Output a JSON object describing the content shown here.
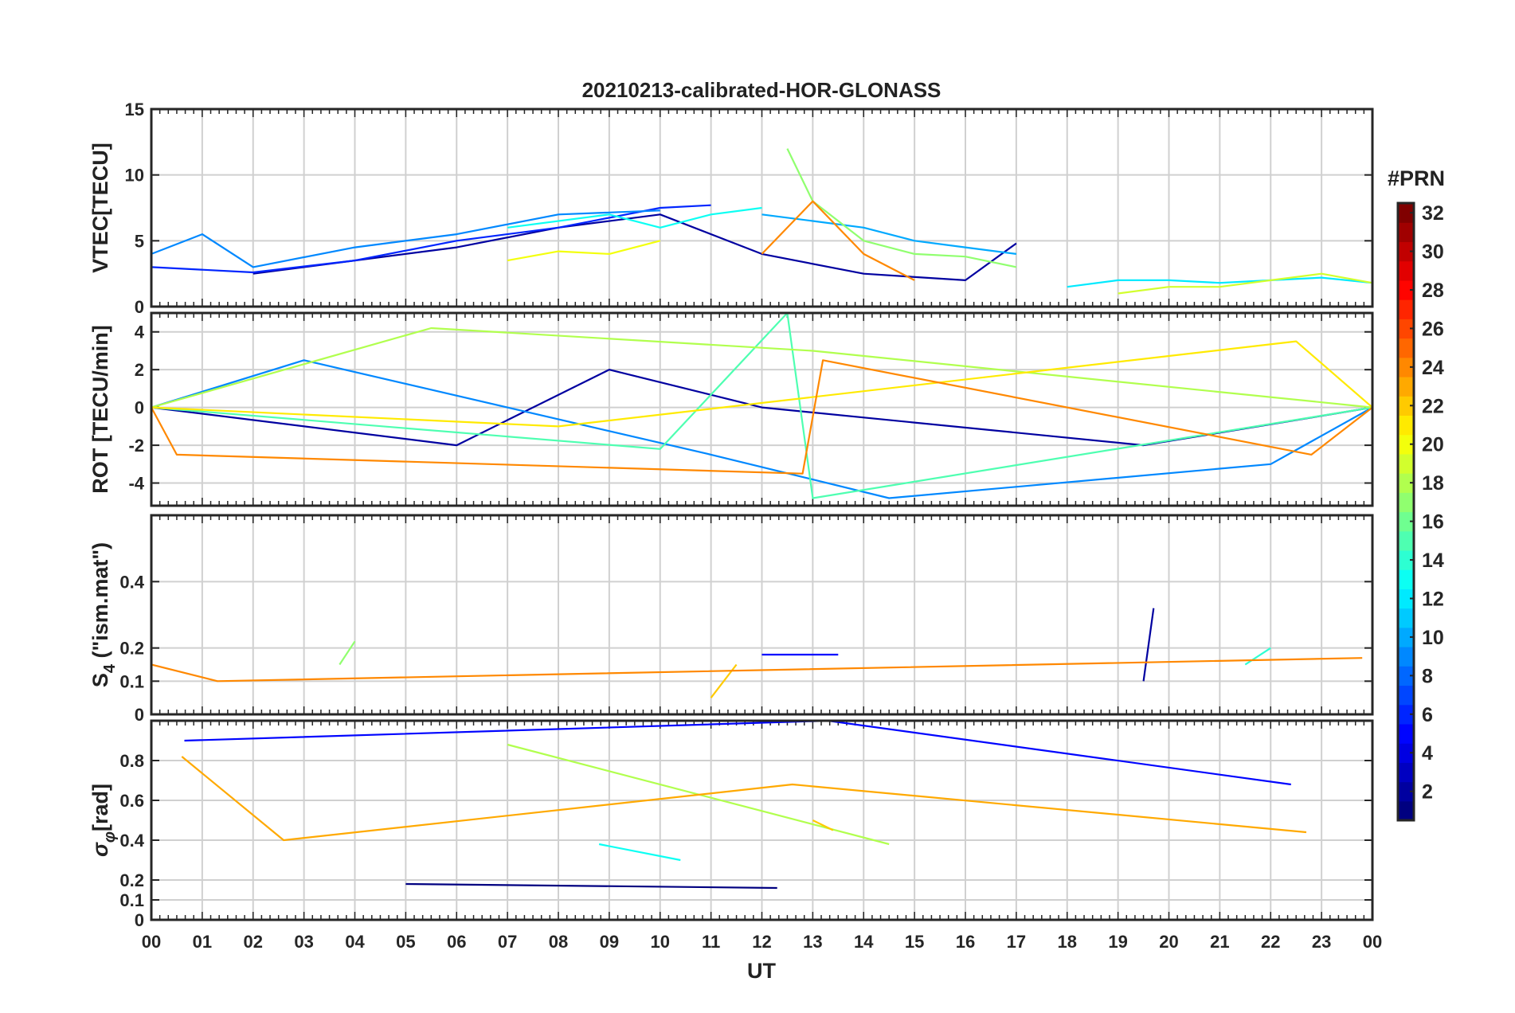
{
  "chart_data": {
    "type": "line",
    "title": "20210213-calibrated-HOR-GLONASS",
    "xlabel": "UT",
    "xlim": [
      0,
      24
    ],
    "x_tick_labels": [
      "00",
      "01",
      "02",
      "03",
      "04",
      "05",
      "06",
      "07",
      "08",
      "09",
      "10",
      "11",
      "12",
      "13",
      "14",
      "15",
      "16",
      "17",
      "18",
      "19",
      "20",
      "21",
      "22",
      "23",
      "00"
    ],
    "panels": [
      {
        "id": "vtec",
        "ylabel": "VTEC[TECU]",
        "ylim": [
          0,
          15
        ],
        "y_ticks": [
          0,
          5,
          10,
          15
        ],
        "y_tick_labels": [
          "0",
          "5",
          "10",
          "15"
        ],
        "series": [
          {
            "prn": 2,
            "x": [
              2,
              4,
              6,
              8,
              10,
              12,
              14,
              16,
              17
            ],
            "values": [
              2.5,
              3.5,
              4.5,
              6,
              7,
              4,
              2.5,
              2,
              4.8
            ]
          },
          {
            "prn": 6,
            "x": [
              0,
              2,
              4,
              6,
              8,
              10,
              11
            ],
            "values": [
              3,
              2.6,
              3.5,
              5,
              6,
              7.5,
              7.7
            ]
          },
          {
            "prn": 9,
            "x": [
              0,
              1,
              2,
              4,
              6,
              8,
              10
            ],
            "values": [
              4,
              5.5,
              3,
              4.5,
              5.5,
              7,
              7.3
            ]
          },
          {
            "prn": 10,
            "x": [
              12,
              13,
              14,
              15,
              16,
              17
            ],
            "values": [
              7,
              6.5,
              6,
              5,
              4.5,
              4
            ]
          },
          {
            "prn": 12,
            "x": [
              18,
              19,
              20,
              21,
              22,
              23,
              24
            ],
            "values": [
              1.5,
              2,
              2,
              1.8,
              2,
              2.2,
              1.8
            ]
          },
          {
            "prn": 13,
            "x": [
              7,
              9,
              10,
              11,
              12
            ],
            "values": [
              6,
              7,
              6,
              7,
              7.5
            ]
          },
          {
            "prn": 17,
            "x": [
              12.5,
              13,
              14,
              15,
              16,
              17
            ],
            "values": [
              12,
              8,
              5,
              4,
              3.8,
              3
            ]
          },
          {
            "prn": 19,
            "x": [
              19,
              20,
              21,
              22,
              23,
              24
            ],
            "values": [
              1,
              1.5,
              1.5,
              2,
              2.5,
              1.8
            ]
          },
          {
            "prn": 20,
            "x": [
              7,
              8,
              9,
              10
            ],
            "values": [
              3.5,
              4.2,
              4,
              5
            ]
          },
          {
            "prn": 24,
            "x": [
              12,
              13,
              14,
              15
            ],
            "values": [
              4,
              8,
              4,
              2
            ]
          }
        ]
      },
      {
        "id": "rot",
        "ylabel": "ROT [TECU/min]",
        "ylim": [
          -5.2,
          5
        ],
        "y_ticks": [
          -4,
          -2,
          0,
          2,
          4
        ],
        "y_tick_labels": [
          "-4",
          "-2",
          "0",
          "2",
          "4"
        ],
        "series": [
          {
            "prn": 2,
            "x": [
              0,
              6,
              9,
              12,
              19.5,
              24
            ],
            "values": [
              0,
              -2,
              2,
              0,
              -2,
              0
            ]
          },
          {
            "prn": 9,
            "x": [
              0,
              3,
              11,
              14.5,
              22,
              24
            ],
            "values": [
              0,
              2.5,
              -2.5,
              -4.8,
              -3,
              0
            ]
          },
          {
            "prn": 15,
            "x": [
              0,
              10,
              12.5,
              13,
              24
            ],
            "values": [
              0,
              -2.2,
              5,
              -4.8,
              0
            ]
          },
          {
            "prn": 18,
            "x": [
              0,
              5.5,
              13,
              24
            ],
            "values": [
              0,
              4.2,
              3,
              0
            ]
          },
          {
            "prn": 21,
            "x": [
              0,
              8,
              22.5,
              24
            ],
            "values": [
              0,
              -1,
              3.5,
              0
            ]
          },
          {
            "prn": 24,
            "x": [
              0,
              0.5,
              12.8,
              13.2,
              22.8,
              24
            ],
            "values": [
              0,
              -2.5,
              -3.5,
              2.5,
              -2.5,
              0
            ]
          }
        ]
      },
      {
        "id": "s4",
        "ylabel_main": "S",
        "ylabel_sub": "4",
        "ylabel_rest": " (\"ism.mat\")",
        "ylim": [
          0,
          0.6
        ],
        "y_ticks": [
          0,
          0.1,
          0.2,
          0.4
        ],
        "y_tick_labels": [
          "0",
          "0.1",
          "0.2",
          "0.4"
        ],
        "series": [
          {
            "prn": 2,
            "x": [
              19.5,
              19.7
            ],
            "values": [
              0.1,
              0.32
            ]
          },
          {
            "prn": 5,
            "x": [
              12,
              13.5
            ],
            "values": [
              0.18,
              0.18
            ]
          },
          {
            "prn": 14,
            "x": [
              21.5,
              22
            ],
            "values": [
              0.15,
              0.2
            ]
          },
          {
            "prn": 17,
            "x": [
              3.7,
              4
            ],
            "values": [
              0.15,
              0.22
            ]
          },
          {
            "prn": 22,
            "x": [
              11,
              11.5
            ],
            "values": [
              0.05,
              0.15
            ]
          },
          {
            "prn": 24,
            "x": [
              0,
              1.3,
              23.8
            ],
            "values": [
              0.15,
              0.1,
              0.17
            ]
          }
        ]
      },
      {
        "id": "sigma",
        "ylabel_main": "σ",
        "ylabel_sub": "φ",
        "ylabel_rest": "[rad]",
        "ylim": [
          0,
          1
        ],
        "y_ticks": [
          0,
          0.1,
          0.2,
          0.4,
          0.6,
          0.8
        ],
        "y_tick_labels": [
          "0",
          "0.1",
          "0.2",
          "0.4",
          "0.6",
          "0.8"
        ],
        "series": [
          {
            "prn": 5,
            "x": [
              0.65,
              13.3,
              22.4
            ],
            "values": [
              0.9,
              1.0,
              0.68
            ]
          },
          {
            "prn": 18,
            "x": [
              7,
              14.5
            ],
            "values": [
              0.88,
              0.38
            ]
          },
          {
            "prn": 13,
            "x": [
              8.8,
              10.4
            ],
            "values": [
              0.38,
              0.3
            ]
          },
          {
            "prn": 23,
            "x": [
              0.6,
              2.6,
              12.6,
              22.7
            ],
            "values": [
              0.82,
              0.4,
              0.68,
              0.44
            ]
          },
          {
            "prn": 22,
            "x": [
              13,
              13.4
            ],
            "values": [
              0.5,
              0.45
            ]
          },
          {
            "prn": 1,
            "x": [
              5,
              12.3
            ],
            "values": [
              0.18,
              0.16
            ]
          }
        ]
      }
    ],
    "colorbar": {
      "label": "#PRN",
      "range": [
        1,
        32
      ],
      "tick_values": [
        2,
        4,
        6,
        8,
        10,
        12,
        14,
        16,
        18,
        20,
        22,
        24,
        26,
        28,
        30,
        32
      ],
      "tick_labels": [
        "2",
        "4",
        "6",
        "8",
        "10",
        "12",
        "14",
        "16",
        "18",
        "20",
        "22",
        "24",
        "26",
        "28",
        "30",
        "32"
      ],
      "colormap": "jet"
    }
  }
}
